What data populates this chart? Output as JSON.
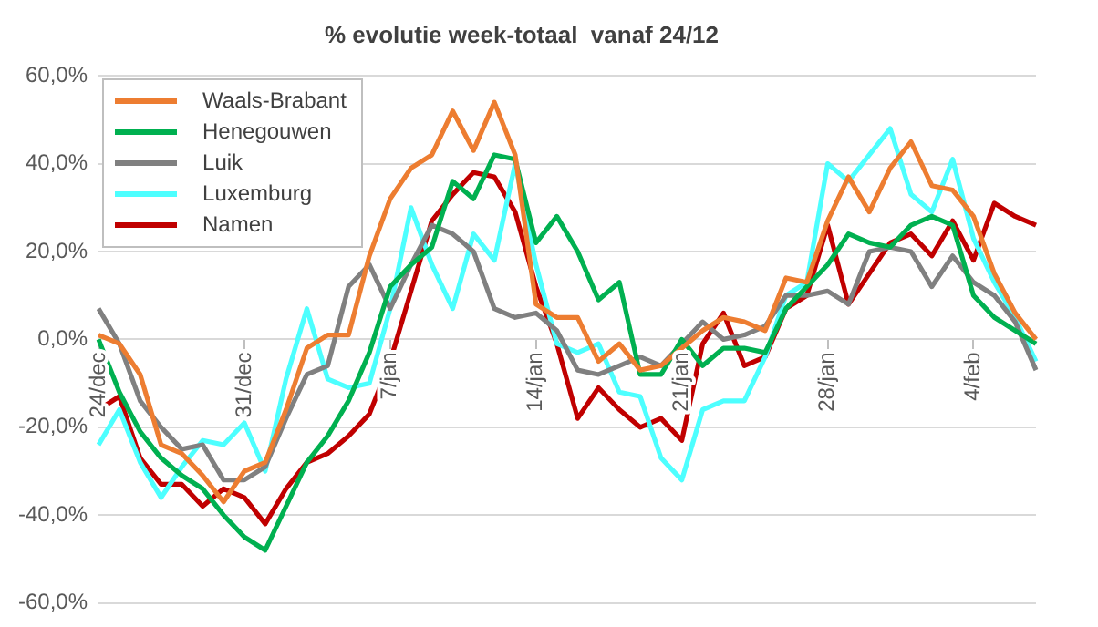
{
  "chart_data": {
    "type": "line",
    "title": "% evolutie week-totaal  vanaf 24/12",
    "categories": [
      "24/dec",
      null,
      null,
      null,
      null,
      null,
      null,
      "31/dec",
      null,
      null,
      null,
      null,
      null,
      null,
      "7/jan",
      null,
      null,
      null,
      null,
      null,
      null,
      "14/jan",
      null,
      null,
      null,
      null,
      null,
      null,
      "21/jan",
      null,
      null,
      null,
      null,
      null,
      null,
      "28/jan",
      null,
      null,
      null,
      null,
      null,
      null,
      "4/feb",
      null,
      null,
      null
    ],
    "series": [
      {
        "name": "Waals-Brabant",
        "color": "#ed7d31",
        "values": [
          1,
          -1,
          -8,
          -24,
          -26,
          -31,
          -37,
          -30,
          -28,
          -16,
          -2,
          1,
          1,
          19,
          32,
          39,
          42,
          52,
          43,
          54,
          42,
          8,
          5,
          5,
          -5,
          -1,
          -7,
          -6,
          -2,
          2,
          5,
          4,
          2,
          14,
          13,
          27,
          37,
          29,
          39,
          45,
          35,
          34,
          28,
          15,
          6,
          0
        ]
      },
      {
        "name": "Henegouwen",
        "color": "#00b050",
        "values": [
          0,
          -12,
          -21,
          -27,
          -31,
          -34,
          -40,
          -45,
          -48,
          -38,
          -28,
          -22,
          -14,
          -3,
          12,
          17,
          21,
          36,
          32,
          42,
          41,
          22,
          28,
          20,
          9,
          13,
          -8,
          -8,
          0,
          -6,
          -2,
          -2,
          -3,
          7,
          12,
          17,
          24,
          22,
          21,
          26,
          28,
          26,
          10,
          5,
          2,
          -1
        ]
      },
      {
        "name": "Luik",
        "color": "#808080",
        "values": [
          7,
          -1,
          -14,
          -20,
          -25,
          -24,
          -32,
          -32,
          -29,
          -18,
          -8,
          -6,
          12,
          17,
          7,
          17,
          26,
          24,
          20,
          7,
          5,
          6,
          2,
          -7,
          -8,
          -6,
          -4,
          -6,
          -1,
          4,
          0,
          1,
          3,
          10,
          10,
          11,
          8,
          20,
          21,
          20,
          12,
          19,
          13,
          10,
          4,
          -7
        ]
      },
      {
        "name": "Luxemburg",
        "color": "#4dffff",
        "values": [
          -24,
          -16,
          -28,
          -36,
          -29,
          -23,
          -24,
          -19,
          -30,
          -9,
          7,
          -9,
          -11,
          -10,
          7,
          30,
          17,
          7,
          24,
          18,
          40,
          17,
          -1,
          -3,
          -1,
          -12,
          -13,
          -27,
          -32,
          -16,
          -14,
          -14,
          -4,
          10,
          13,
          40,
          36,
          42,
          48,
          33,
          29,
          41,
          23,
          13,
          5,
          -5
        ]
      },
      {
        "name": "Namen",
        "color": "#c00000",
        "values": [
          -16,
          -13,
          -27,
          -33,
          -33,
          -38,
          -34,
          -36,
          -42,
          -34,
          -28,
          -26,
          -22,
          -17,
          -5,
          11,
          27,
          33,
          38,
          37,
          29,
          12,
          -1,
          -18,
          -11,
          -16,
          -20,
          -18,
          -23,
          -1,
          6,
          -6,
          -4,
          7,
          10,
          26,
          8,
          15,
          22,
          24,
          19,
          27,
          18,
          31,
          28,
          26
        ]
      }
    ],
    "ylim": [
      -60,
      60
    ],
    "yticks": [
      {
        "value": -60,
        "label": "-60,0%"
      },
      {
        "value": -40,
        "label": "-40,0%"
      },
      {
        "value": -20,
        "label": "-20,0%"
      },
      {
        "value": 0,
        "label": "0,0%"
      },
      {
        "value": 20,
        "label": "20,0%"
      },
      {
        "value": 40,
        "label": "40,0%"
      },
      {
        "value": 60,
        "label": "60,0%"
      }
    ],
    "grid": "y",
    "legend": "top left",
    "marker": "none",
    "line_style": "solid"
  }
}
